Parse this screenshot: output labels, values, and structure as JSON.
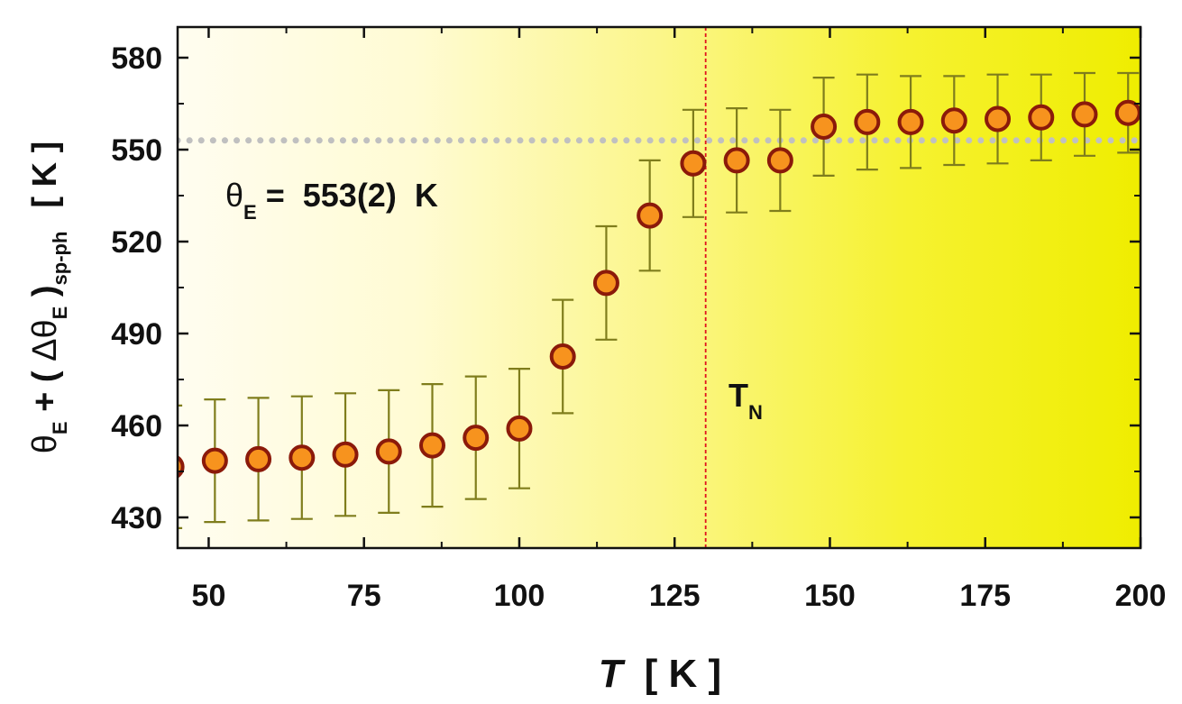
{
  "chart_data": {
    "type": "scatter",
    "xlabel": {
      "symbol": "T",
      "unit": "[ K ]"
    },
    "ylabel": {
      "theta": "θ",
      "sub_e": "E",
      "plus_paren": " + ( ",
      "delta_theta": "Δθ",
      "sub_e2": "E",
      "close": " )",
      "sub_spph": "sp-ph",
      "unit": "[ K ]"
    },
    "xlim": [
      45,
      200
    ],
    "ylim": [
      420,
      590
    ],
    "x_ticks": [
      50,
      75,
      100,
      125,
      150,
      175,
      200
    ],
    "y_ticks": [
      430,
      460,
      490,
      520,
      550,
      580
    ],
    "grid": false,
    "background": "gradient from pale cream (left) to bright yellow (right)",
    "series": [
      {
        "marker": "circle",
        "fill_color": "#f7931e",
        "edge_color": "#8b1a0a",
        "errorbar_color": "#7f7d1c",
        "points": [
          {
            "x": 44,
            "y": 446.5,
            "err": 20
          },
          {
            "x": 51,
            "y": 448.5,
            "err": 20
          },
          {
            "x": 58,
            "y": 449,
            "err": 20
          },
          {
            "x": 65,
            "y": 449.5,
            "err": 20
          },
          {
            "x": 72,
            "y": 450.5,
            "err": 20
          },
          {
            "x": 79,
            "y": 451.5,
            "err": 20
          },
          {
            "x": 86,
            "y": 453.5,
            "err": 20
          },
          {
            "x": 93,
            "y": 456,
            "err": 20
          },
          {
            "x": 100,
            "y": 459,
            "err": 19.5
          },
          {
            "x": 107,
            "y": 482.5,
            "err": 18.5
          },
          {
            "x": 114,
            "y": 506.5,
            "err": 18.5
          },
          {
            "x": 121,
            "y": 528.5,
            "err": 18
          },
          {
            "x": 128,
            "y": 545.5,
            "err": 17.5
          },
          {
            "x": 135,
            "y": 546.5,
            "err": 17
          },
          {
            "x": 142,
            "y": 546.5,
            "err": 16.5
          },
          {
            "x": 149,
            "y": 557.5,
            "err": 16
          },
          {
            "x": 156,
            "y": 559,
            "err": 15.5
          },
          {
            "x": 163,
            "y": 559,
            "err": 15
          },
          {
            "x": 170,
            "y": 559.5,
            "err": 14.5
          },
          {
            "x": 177,
            "y": 560,
            "err": 14.5
          },
          {
            "x": 184,
            "y": 560.5,
            "err": 14
          },
          {
            "x": 191,
            "y": 561.5,
            "err": 13.5
          },
          {
            "x": 198,
            "y": 562,
            "err": 13
          }
        ]
      }
    ],
    "reference_lines": [
      {
        "orientation": "horizontal",
        "value": 553,
        "style": "dotted",
        "color": "#c0c0c0"
      },
      {
        "orientation": "vertical",
        "value": 130,
        "style": "dashed",
        "color": "#e0141e"
      }
    ],
    "annotations": [
      {
        "id": "theta_e",
        "theta": "θ",
        "sub": "E",
        "rest": " =  553(2)  K"
      },
      {
        "id": "tn",
        "main": "T",
        "sub": "N"
      }
    ]
  }
}
